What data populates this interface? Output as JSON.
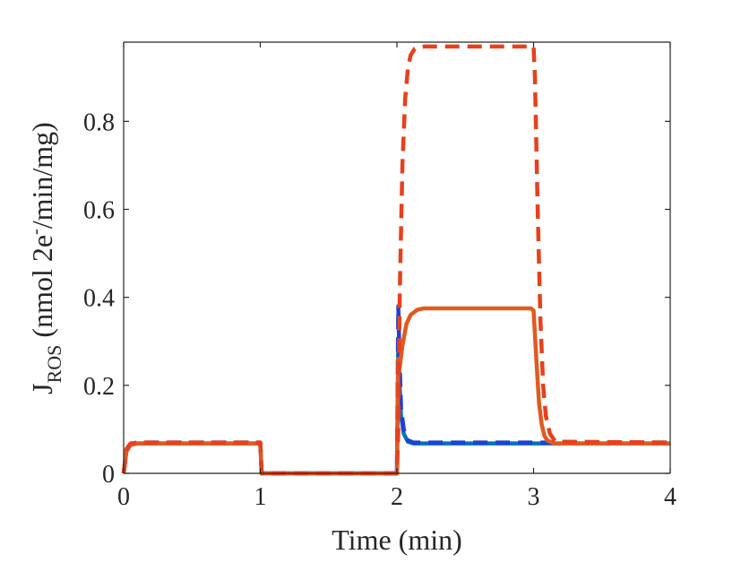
{
  "chart_data": {
    "type": "line",
    "title": "",
    "xlabel": "Time (min)",
    "ylabel_parts": {
      "main": "J",
      "sub": "ROS",
      "rest_before_sup": " (nmol 2e",
      "sup": "-",
      "rest_after_sup": "/min/mg)"
    },
    "xlim": [
      0,
      4
    ],
    "ylim": [
      0,
      0.98
    ],
    "xticks": [
      0,
      1,
      2,
      3,
      4
    ],
    "xtick_labels": [
      "0",
      "1",
      "2",
      "3",
      "4"
    ],
    "yticks": [
      0,
      0.2,
      0.4,
      0.6,
      0.8
    ],
    "ytick_labels": [
      "0",
      "0.2",
      "0.4",
      "0.6",
      "0.8"
    ],
    "grid": false,
    "legend": "none",
    "series": [
      {
        "color": "#0072BD",
        "style": "solid",
        "x": [
          0,
          0.02,
          0.05,
          0.1,
          0.99,
          1.0,
          1.01,
          1.99,
          2.0,
          2.01,
          2.02,
          2.03,
          2.05,
          2.08,
          2.12,
          4.0
        ],
        "y": [
          0,
          0.05,
          0.065,
          0.068,
          0.068,
          0.068,
          0,
          0,
          0,
          0.3,
          0.2,
          0.13,
          0.09,
          0.072,
          0.068,
          0.068
        ]
      },
      {
        "color": "#1F3FD6",
        "style": "dashed",
        "x": [
          0,
          0.02,
          0.05,
          0.1,
          0.99,
          1.0,
          1.01,
          1.99,
          2.0,
          2.01,
          2.02,
          2.03,
          2.05,
          2.08,
          2.12,
          4.0
        ],
        "y": [
          0,
          0.05,
          0.066,
          0.07,
          0.07,
          0.07,
          0,
          0,
          0,
          0.38,
          0.25,
          0.15,
          0.1,
          0.075,
          0.07,
          0.07
        ]
      },
      {
        "color": "#E05A20",
        "style": "solid",
        "x": [
          0,
          0.02,
          0.05,
          0.1,
          0.99,
          1.0,
          1.01,
          1.99,
          2.0,
          2.01,
          2.02,
          2.04,
          2.07,
          2.1,
          2.15,
          2.2,
          2.98,
          3.0,
          3.02,
          3.04,
          3.06,
          3.08,
          3.1,
          3.15,
          4.0
        ],
        "y": [
          0,
          0.05,
          0.065,
          0.068,
          0.068,
          0.068,
          0,
          0,
          0,
          0.26,
          0.24,
          0.29,
          0.34,
          0.36,
          0.372,
          0.375,
          0.375,
          0.37,
          0.26,
          0.16,
          0.11,
          0.085,
          0.075,
          0.068,
          0.068
        ]
      },
      {
        "color": "#E8401C",
        "style": "dashed",
        "x": [
          0,
          0.02,
          0.05,
          0.1,
          0.99,
          1.0,
          1.01,
          1.99,
          2.0,
          2.01,
          2.02,
          2.04,
          2.06,
          2.08,
          2.1,
          2.13,
          2.2,
          3.0,
          3.01,
          3.03,
          3.05,
          3.07,
          3.09,
          3.12,
          3.16,
          4.0
        ],
        "y": [
          0,
          0.055,
          0.068,
          0.07,
          0.07,
          0.07,
          0,
          0,
          0,
          0.1,
          0.4,
          0.7,
          0.85,
          0.92,
          0.95,
          0.965,
          0.97,
          0.97,
          0.9,
          0.6,
          0.35,
          0.2,
          0.13,
          0.09,
          0.072,
          0.07
        ]
      }
    ]
  }
}
